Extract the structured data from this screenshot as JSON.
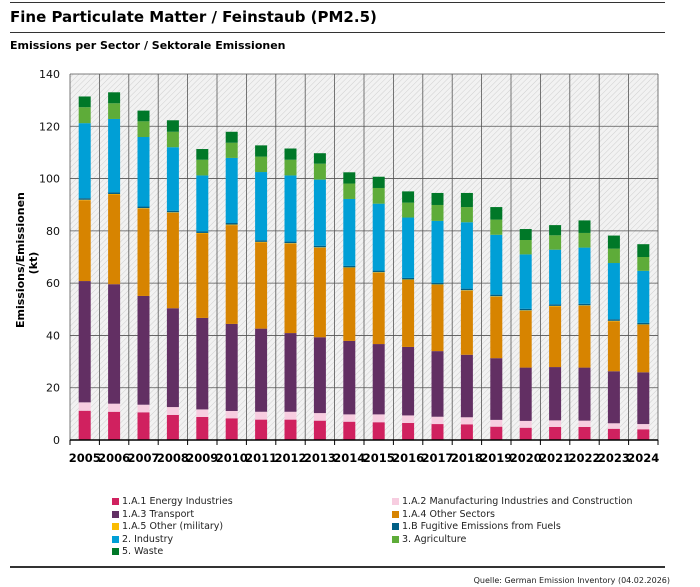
{
  "title": "Fine Particulate Matter / Feinstaub (PM2.5)",
  "subtitle": "Emissions per Sector / Sektorale Emissionen",
  "source": "Quelle: German Emission Inventory (04.02.2026)",
  "chart_data": {
    "type": "bar",
    "stacked": true,
    "ylabel": "Emissions/Emissionen (kt)",
    "xlabel": "",
    "ylim": [
      0,
      140
    ],
    "yticks": [
      0,
      20,
      40,
      60,
      80,
      100,
      120,
      140
    ],
    "grid": true,
    "legend_position": "bottom",
    "categories": [
      "2005",
      "2006",
      "2007",
      "2008",
      "2009",
      "2010",
      "2011",
      "2012",
      "2013",
      "2014",
      "2015",
      "2016",
      "2017",
      "2018",
      "2019",
      "2020",
      "2021",
      "2022",
      "2023",
      "2024"
    ],
    "series": [
      {
        "name": "1.A.1 Energy Industries",
        "color": "#d0215f",
        "values": [
          11.2,
          10.8,
          10.6,
          9.6,
          8.8,
          8.3,
          7.8,
          7.8,
          7.4,
          7.0,
          6.8,
          6.5,
          6.1,
          6.0,
          5.1,
          4.7,
          5.0,
          5.0,
          4.3,
          4.1
        ]
      },
      {
        "name": "1.A.2 Manufacturing Industries and Construction",
        "color": "#f7cde0",
        "values": [
          3.2,
          3.1,
          2.9,
          3.0,
          2.9,
          2.8,
          3.0,
          3.0,
          2.9,
          2.8,
          3.0,
          2.9,
          2.8,
          2.7,
          2.6,
          2.6,
          2.5,
          2.4,
          2.1,
          2.0
        ]
      },
      {
        "name": "1.A.3 Transport",
        "color": "#622f63",
        "values": [
          46.4,
          45.7,
          41.6,
          37.8,
          35.0,
          33.3,
          31.8,
          30.1,
          29.0,
          28.1,
          26.9,
          26.2,
          25.1,
          23.9,
          23.6,
          20.4,
          20.4,
          20.3,
          19.9,
          19.8
        ]
      },
      {
        "name": "1.A.4 Other Sectors",
        "color": "#d78400",
        "values": [
          30.9,
          34.3,
          33.4,
          36.5,
          32.3,
          37.8,
          33.0,
          34.2,
          34.2,
          27.9,
          27.3,
          25.6,
          25.3,
          24.5,
          23.5,
          21.7,
          23.2,
          23.6,
          19.1,
          18.1
        ]
      },
      {
        "name": "1.A.5 Other (military)",
        "color": "#fabb00",
        "values": [
          0.2,
          0.2,
          0.2,
          0.2,
          0.2,
          0.2,
          0.2,
          0.2,
          0.2,
          0.2,
          0.2,
          0.2,
          0.2,
          0.2,
          0.2,
          0.2,
          0.2,
          0.2,
          0.2,
          0.2
        ]
      },
      {
        "name": "1.B Fugitive Emissions from Fuels",
        "color": "#005f85",
        "values": [
          0.6,
          0.6,
          0.6,
          0.6,
          0.6,
          0.6,
          0.6,
          0.6,
          0.6,
          0.6,
          0.6,
          0.6,
          0.6,
          0.6,
          0.6,
          0.6,
          0.6,
          0.6,
          0.6,
          0.6
        ]
      },
      {
        "name": "2. Industry",
        "color": "#009fd6",
        "values": [
          28.7,
          28.1,
          26.6,
          24.3,
          21.4,
          24.9,
          26.1,
          25.3,
          25.3,
          25.6,
          25.6,
          23.1,
          23.7,
          25.4,
          22.9,
          20.8,
          20.9,
          21.5,
          21.5,
          19.9
        ]
      },
      {
        "name": "3. Agriculture",
        "color": "#5eac39",
        "values": [
          6.1,
          6.0,
          6.0,
          5.9,
          6.0,
          5.8,
          5.9,
          6.0,
          6.1,
          5.9,
          6.0,
          5.7,
          6.1,
          5.8,
          5.8,
          5.5,
          5.5,
          5.6,
          5.5,
          5.3
        ]
      },
      {
        "name": "5. Waste",
        "color": "#007828",
        "values": [
          4.1,
          4.2,
          4.1,
          4.4,
          4.1,
          4.2,
          4.3,
          4.3,
          4.0,
          4.3,
          4.3,
          4.3,
          4.6,
          5.4,
          4.8,
          4.2,
          3.9,
          4.8,
          5.0,
          4.9
        ]
      }
    ]
  }
}
